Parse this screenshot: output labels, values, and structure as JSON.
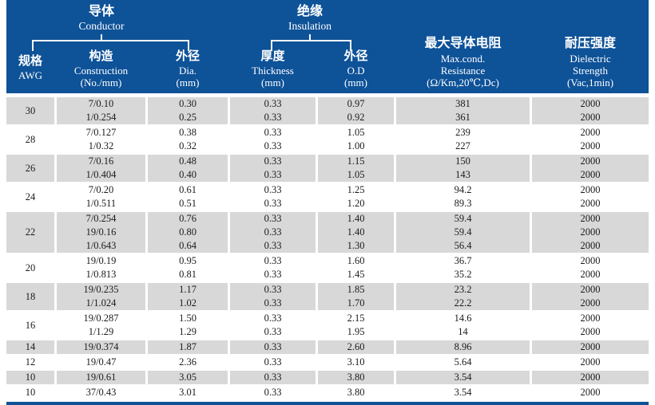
{
  "header": {
    "groups": [
      {
        "zh": "导体",
        "en": "Conductor"
      },
      {
        "zh": "绝缘",
        "en": "Insulation"
      }
    ],
    "columns": [
      {
        "key": "awg",
        "zh": "规格",
        "en": "AWG"
      },
      {
        "key": "construction",
        "zh": "构造",
        "en": "Construction",
        "unit": "(No./mm)"
      },
      {
        "key": "dia",
        "zh": "外径",
        "en": "Dia.",
        "unit": "(mm)"
      },
      {
        "key": "thickness",
        "zh": "厚度",
        "en": "Thickness",
        "unit": "(mm)"
      },
      {
        "key": "od",
        "zh": "外径",
        "en": "O.D",
        "unit": "(mm)"
      },
      {
        "key": "resistance",
        "zh": "最大导体电阻",
        "en": "Max.cond.",
        "en2": "Resistance",
        "unit": "(Ω/Km,20℃,Dc)"
      },
      {
        "key": "dielectric",
        "zh": "耐压强度",
        "en": "Dielectric",
        "en2": "Strength",
        "unit": "(Vac,1min)"
      }
    ]
  },
  "table": {
    "column_order": [
      "construction",
      "dia",
      "thickness",
      "od",
      "resistance",
      "dielectric"
    ],
    "groups": [
      {
        "awg": "30",
        "shaded": true,
        "rows": [
          [
            "7/0.10",
            "0.30",
            "0.33",
            "0.97",
            "381",
            "2000"
          ],
          [
            "1/0.254",
            "0.25",
            "0.33",
            "0.92",
            "361",
            "2000"
          ]
        ]
      },
      {
        "awg": "28",
        "shaded": false,
        "rows": [
          [
            "7/0.127",
            "0.38",
            "0.33",
            "1.05",
            "239",
            "2000"
          ],
          [
            "1/0.32",
            "0.32",
            "0.33",
            "1.00",
            "227",
            "2000"
          ]
        ]
      },
      {
        "awg": "26",
        "shaded": true,
        "rows": [
          [
            "7/0.16",
            "0.48",
            "0.33",
            "1.15",
            "150",
            "2000"
          ],
          [
            "1/0.404",
            "0.40",
            "0.33",
            "1.05",
            "143",
            "2000"
          ]
        ]
      },
      {
        "awg": "24",
        "shaded": false,
        "rows": [
          [
            "7/0.20",
            "0.61",
            "0.33",
            "1.25",
            "94.2",
            "2000"
          ],
          [
            "1/0.511",
            "0.51",
            "0.33",
            "1.20",
            "89.3",
            "2000"
          ]
        ]
      },
      {
        "awg": "22",
        "shaded": true,
        "rows": [
          [
            "7/0.254",
            "0.76",
            "0.33",
            "1.40",
            "59.4",
            "2000"
          ],
          [
            "19/0.16",
            "0.80",
            "0.33",
            "1.40",
            "59.4",
            "2000"
          ],
          [
            "1/0.643",
            "0.64",
            "0.33",
            "1.30",
            "56.4",
            "2000"
          ]
        ]
      },
      {
        "awg": "20",
        "shaded": false,
        "rows": [
          [
            "19/0.19",
            "0.95",
            "0.33",
            "1.60",
            "36.7",
            "2000"
          ],
          [
            "1/0.813",
            "0.81",
            "0.33",
            "1.45",
            "35.2",
            "2000"
          ]
        ]
      },
      {
        "awg": "18",
        "shaded": true,
        "rows": [
          [
            "19/0.235",
            "1.17",
            "0.33",
            "1.85",
            "23.2",
            "2000"
          ],
          [
            "1/1.024",
            "1.02",
            "0.33",
            "1.70",
            "22.2",
            "2000"
          ]
        ]
      },
      {
        "awg": "16",
        "shaded": false,
        "rows": [
          [
            "19/0.287",
            "1.50",
            "0.33",
            "2.15",
            "14.6",
            "2000"
          ],
          [
            "1/1.29",
            "1.29",
            "0.33",
            "1.95",
            "14",
            "2000"
          ]
        ]
      },
      {
        "awg": "14",
        "shaded": true,
        "rows": [
          [
            "19/0.374",
            "1.87",
            "0.33",
            "2.60",
            "8.96",
            "2000"
          ]
        ]
      },
      {
        "awg": "12",
        "shaded": false,
        "rows": [
          [
            "19/0.47",
            "2.36",
            "0.33",
            "3.10",
            "5.64",
            "2000"
          ]
        ]
      },
      {
        "awg": "10",
        "shaded": true,
        "rows": [
          [
            "19/0.61",
            "3.05",
            "0.33",
            "3.80",
            "3.54",
            "2000"
          ]
        ]
      },
      {
        "awg": "10",
        "shaded": false,
        "rows": [
          [
            "37/0.43",
            "3.01",
            "0.33",
            "3.80",
            "3.54",
            "2000"
          ]
        ]
      }
    ]
  },
  "colors": {
    "header_blue": "#0E5298",
    "row_gray": "#d8d8d8",
    "text": "#1b1b1b",
    "header_text": "#ffffff"
  }
}
